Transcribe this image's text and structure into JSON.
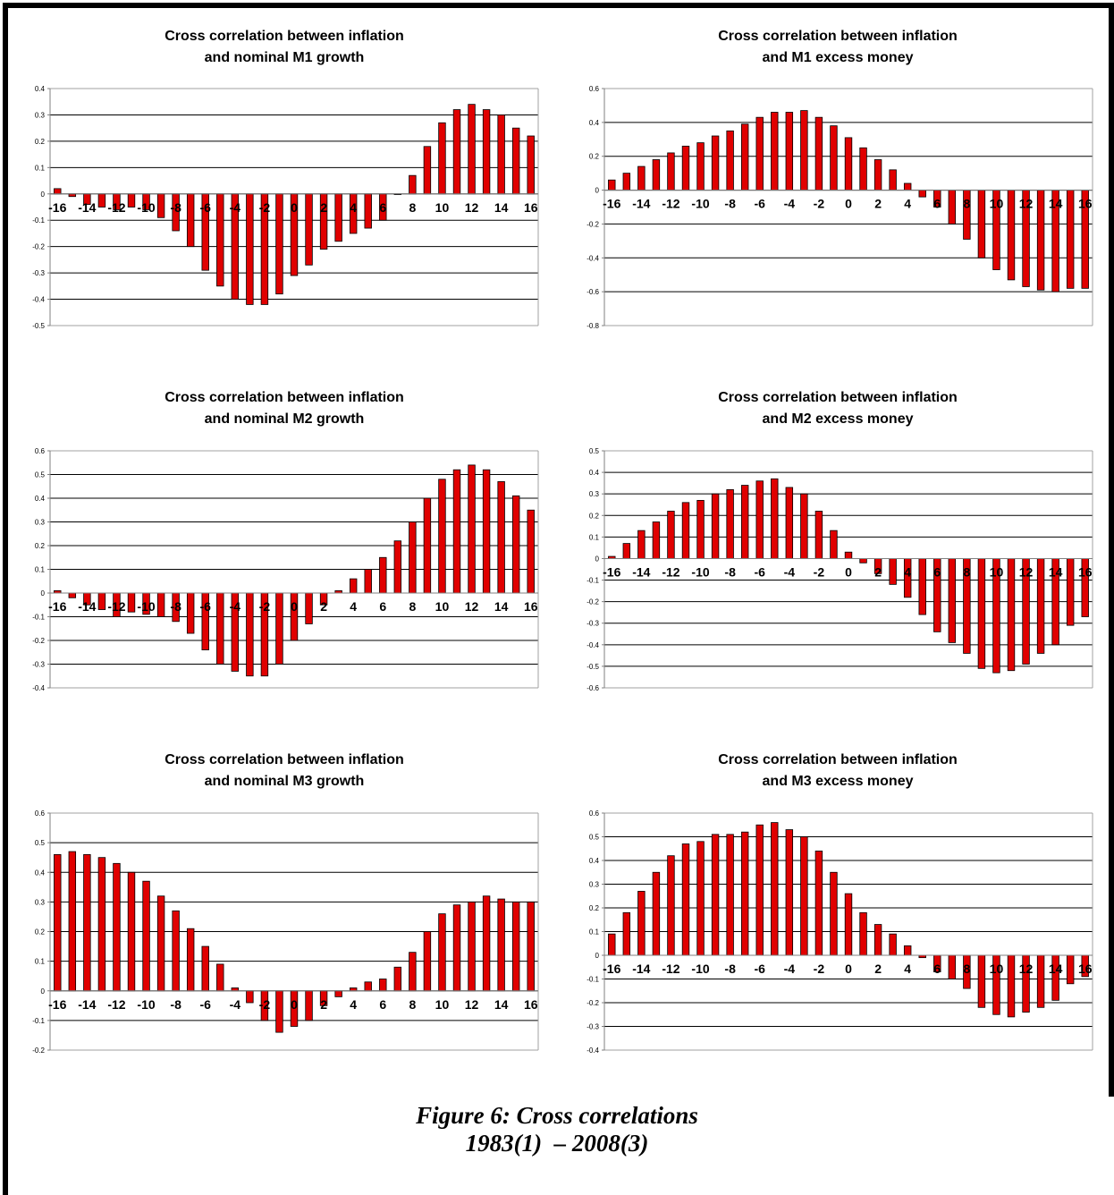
{
  "figure": {
    "caption_line1": "Figure 6: Cross correlations",
    "caption_line2": "1983(1)  – 2008(3)"
  },
  "colors": {
    "bar": "#e00000",
    "bar_border": "#000000",
    "grid": "#000000",
    "axis": "#808080"
  },
  "chart_data": [
    {
      "type": "bar",
      "title_line1": "Cross correlation between inflation",
      "title_line2": "and nominal M1 growth",
      "x": [
        -16,
        -15,
        -14,
        -13,
        -12,
        -11,
        -10,
        -9,
        -8,
        -7,
        -6,
        -5,
        -4,
        -3,
        -2,
        -1,
        0,
        1,
        2,
        3,
        4,
        5,
        6,
        7,
        8,
        9,
        10,
        11,
        12,
        13,
        14,
        15,
        16
      ],
      "values": [
        0.02,
        -0.01,
        -0.04,
        -0.05,
        -0.06,
        -0.05,
        -0.06,
        -0.09,
        -0.14,
        -0.2,
        -0.29,
        -0.35,
        -0.4,
        -0.42,
        -0.42,
        -0.38,
        -0.31,
        -0.27,
        -0.21,
        -0.18,
        -0.15,
        -0.13,
        -0.1,
        0,
        0.07,
        0.18,
        0.27,
        0.32,
        0.34,
        0.32,
        0.3,
        0.25,
        0.22
      ],
      "ylim": [
        -0.5,
        0.4
      ],
      "yticks": [
        "0.4",
        "0.3",
        "0.2",
        "0.1",
        "0",
        "-0.1",
        "-0.2",
        "-0.3",
        "-0.4",
        "-0.5"
      ],
      "xtick_labels": [
        "-16",
        "-14",
        "-12",
        "-10",
        "-8",
        "-6",
        "-4",
        "-2",
        "0",
        "2",
        "4",
        "6",
        "8",
        "10",
        "12",
        "14",
        "16"
      ],
      "grid": "horizontal"
    },
    {
      "type": "bar",
      "title_line1": "Cross correlation between inflation",
      "title_line2": "and M1 excess money",
      "x": [
        -16,
        -15,
        -14,
        -13,
        -12,
        -11,
        -10,
        -9,
        -8,
        -7,
        -6,
        -5,
        -4,
        -3,
        -2,
        -1,
        0,
        1,
        2,
        3,
        4,
        5,
        6,
        7,
        8,
        9,
        10,
        11,
        12,
        13,
        14,
        15,
        16
      ],
      "values": [
        0.06,
        0.1,
        0.14,
        0.18,
        0.22,
        0.26,
        0.28,
        0.32,
        0.35,
        0.39,
        0.43,
        0.46,
        0.46,
        0.47,
        0.43,
        0.38,
        0.31,
        0.25,
        0.18,
        0.12,
        0.04,
        -0.04,
        -0.1,
        -0.2,
        -0.29,
        -0.4,
        -0.47,
        -0.53,
        -0.57,
        -0.59,
        -0.6,
        -0.58,
        -0.58
      ],
      "ylim": [
        -0.8,
        0.6
      ],
      "yticks": [
        "0.6",
        "0.4",
        "0.2",
        "0",
        "-0.2",
        "-0.4",
        "-0.6",
        "-0.8"
      ],
      "xtick_labels": [
        "-16",
        "-14",
        "-12",
        "-10",
        "-8",
        "-6",
        "-4",
        "-2",
        "0",
        "2",
        "4",
        "6",
        "8",
        "10",
        "12",
        "14",
        "16"
      ],
      "grid": "horizontal"
    },
    {
      "type": "bar",
      "title_line1": "Cross correlation between inflation",
      "title_line2": "and nominal M2 growth",
      "x": [
        -16,
        -15,
        -14,
        -13,
        -12,
        -11,
        -10,
        -9,
        -8,
        -7,
        -6,
        -5,
        -4,
        -3,
        -2,
        -1,
        0,
        1,
        2,
        3,
        4,
        5,
        6,
        7,
        8,
        9,
        10,
        11,
        12,
        13,
        14,
        15,
        16
      ],
      "values": [
        0.01,
        -0.02,
        -0.05,
        -0.07,
        -0.1,
        -0.08,
        -0.09,
        -0.1,
        -0.12,
        -0.17,
        -0.24,
        -0.3,
        -0.33,
        -0.35,
        -0.35,
        -0.3,
        -0.2,
        -0.13,
        -0.05,
        0.01,
        0.06,
        0.1,
        0.15,
        0.22,
        0.3,
        0.4,
        0.48,
        0.52,
        0.54,
        0.52,
        0.47,
        0.41,
        0.35
      ],
      "ylim": [
        -0.4,
        0.6
      ],
      "yticks": [
        "0.6",
        "0.5",
        "0.4",
        "0.3",
        "0.2",
        "0.1",
        "0",
        "-0.1",
        "-0.2",
        "-0.3",
        "-0.4"
      ],
      "xtick_labels": [
        "-16",
        "-14",
        "-12",
        "-10",
        "-8",
        "-6",
        "-4",
        "-2",
        "0",
        "2",
        "4",
        "6",
        "8",
        "10",
        "12",
        "14",
        "16"
      ],
      "grid": "horizontal"
    },
    {
      "type": "bar",
      "title_line1": "Cross correlation between inflation",
      "title_line2": "and M2 excess money",
      "x": [
        -16,
        -15,
        -14,
        -13,
        -12,
        -11,
        -10,
        -9,
        -8,
        -7,
        -6,
        -5,
        -4,
        -3,
        -2,
        -1,
        0,
        1,
        2,
        3,
        4,
        5,
        6,
        7,
        8,
        9,
        10,
        11,
        12,
        13,
        14,
        15,
        16
      ],
      "values": [
        0.01,
        0.07,
        0.13,
        0.17,
        0.22,
        0.26,
        0.27,
        0.3,
        0.32,
        0.34,
        0.36,
        0.37,
        0.33,
        0.3,
        0.22,
        0.13,
        0.03,
        -0.02,
        -0.07,
        -0.12,
        -0.18,
        -0.26,
        -0.34,
        -0.39,
        -0.44,
        -0.51,
        -0.53,
        -0.52,
        -0.49,
        -0.44,
        -0.4,
        -0.31,
        -0.27
      ],
      "ylim": [
        -0.6,
        0.5
      ],
      "yticks": [
        "0.5",
        "0.4",
        "0.3",
        "0.2",
        "0.1",
        "0",
        "-0.1",
        "-0.2",
        "-0.3",
        "-0.4",
        "-0.5",
        "-0.6"
      ],
      "xtick_labels": [
        "-16",
        "-14",
        "-12",
        "-10",
        "-8",
        "-6",
        "-4",
        "-2",
        "0",
        "2",
        "4",
        "6",
        "8",
        "10",
        "12",
        "14",
        "16"
      ],
      "grid": "horizontal"
    },
    {
      "type": "bar",
      "title_line1": "Cross correlation between inflation",
      "title_line2": "and nominal M3 growth",
      "x": [
        -16,
        -15,
        -14,
        -13,
        -12,
        -11,
        -10,
        -9,
        -8,
        -7,
        -6,
        -5,
        -4,
        -3,
        -2,
        -1,
        0,
        1,
        2,
        3,
        4,
        5,
        6,
        7,
        8,
        9,
        10,
        11,
        12,
        13,
        14,
        15,
        16
      ],
      "values": [
        0.46,
        0.47,
        0.46,
        0.45,
        0.43,
        0.4,
        0.37,
        0.32,
        0.27,
        0.21,
        0.15,
        0.09,
        0.01,
        -0.04,
        -0.1,
        -0.14,
        -0.12,
        -0.1,
        -0.05,
        -0.02,
        0.01,
        0.03,
        0.04,
        0.08,
        0.13,
        0.2,
        0.26,
        0.29,
        0.3,
        0.32,
        0.31,
        0.3,
        0.3
      ],
      "ylim": [
        -0.2,
        0.6
      ],
      "yticks": [
        "0.6",
        "0.5",
        "0.4",
        "0.3",
        "0.2",
        "0.1",
        "0",
        "-0.1",
        "-0.2"
      ],
      "xtick_labels": [
        "-16",
        "-14",
        "-12",
        "-10",
        "-8",
        "-6",
        "-4",
        "-2",
        "0",
        "2",
        "4",
        "6",
        "8",
        "10",
        "12",
        "14",
        "16"
      ],
      "grid": "horizontal"
    },
    {
      "type": "bar",
      "title_line1": "Cross correlation between inflation",
      "title_line2": "and M3 excess money",
      "x": [
        -16,
        -15,
        -14,
        -13,
        -12,
        -11,
        -10,
        -9,
        -8,
        -7,
        -6,
        -5,
        -4,
        -3,
        -2,
        -1,
        0,
        1,
        2,
        3,
        4,
        5,
        6,
        7,
        8,
        9,
        10,
        11,
        12,
        13,
        14,
        15,
        16
      ],
      "values": [
        0.09,
        0.18,
        0.27,
        0.35,
        0.42,
        0.47,
        0.48,
        0.51,
        0.51,
        0.52,
        0.55,
        0.56,
        0.53,
        0.5,
        0.44,
        0.35,
        0.26,
        0.18,
        0.13,
        0.09,
        0.04,
        -0.01,
        -0.07,
        -0.1,
        -0.14,
        -0.22,
        -0.25,
        -0.26,
        -0.24,
        -0.22,
        -0.19,
        -0.12,
        -0.09
      ],
      "ylim": [
        -0.4,
        0.6
      ],
      "yticks": [
        "0.6",
        "0.5",
        "0.4",
        "0.3",
        "0.2",
        "0.1",
        "0",
        "-0.1",
        "-0.2",
        "-0.3",
        "-0.4"
      ],
      "xtick_labels": [
        "-16",
        "-14",
        "-12",
        "-10",
        "-8",
        "-6",
        "-4",
        "-2",
        "0",
        "2",
        "4",
        "6",
        "8",
        "10",
        "12",
        "14",
        "16"
      ],
      "grid": "horizontal"
    }
  ]
}
